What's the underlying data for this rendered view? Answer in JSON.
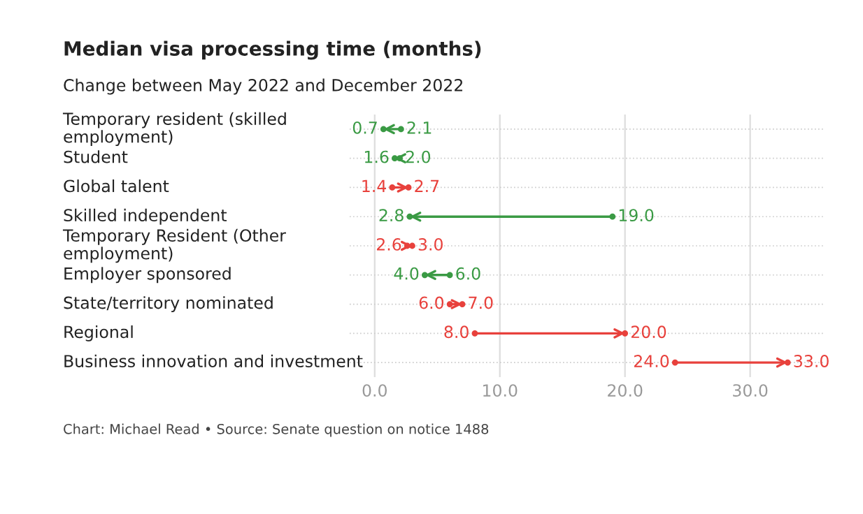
{
  "chart_data": {
    "type": "scatter",
    "orientation": "horizontal",
    "title": "Median visa processing time (months)",
    "subtitle": "Change between May 2022 and December 2022",
    "categories": [
      "Temporary resident (skilled\nemployment)",
      "Student",
      "Global talent",
      "Skilled independent",
      "Temporary Resident (Other\nemployment)",
      "Employer sponsored",
      "State/territory nominated",
      "Regional",
      "Business innovation and investment"
    ],
    "series": [
      {
        "values": [
          2.1,
          2.0,
          1.4,
          19.0,
          2.6,
          6.0,
          6.0,
          8.0,
          24.0
        ],
        "value_labels": [
          "2.1",
          "2.0",
          "1.4",
          "19.0",
          "2.6",
          "6.0",
          "6.0",
          "8.0",
          "24.0"
        ],
        "colors": [
          "#3a9a44",
          "#3a9a44",
          "#e8413c",
          "#3a9a44",
          "#e8413c",
          "#3a9a44",
          "#e8413c",
          "#e8413c",
          "#e8413c"
        ]
      },
      {
        "values": [
          0.7,
          1.6,
          2.7,
          2.8,
          3.0,
          4.0,
          7.0,
          20.0,
          33.0
        ],
        "value_labels": [
          "0.7",
          "1.6",
          "2.7",
          "2.8",
          "3.0",
          "4.0",
          "7.0",
          "20.0",
          "33.0"
        ],
        "colors": [
          "#3a9a44",
          "#3a9a44",
          "#e8413c",
          "#3a9a44",
          "#e8413c",
          "#3a9a44",
          "#e8413c",
          "#e8413c",
          "#e8413c"
        ]
      }
    ],
    "xlim": [
      -2,
      36
    ],
    "xticks": [
      {
        "value": 0,
        "label": "0.0"
      },
      {
        "value": 10,
        "label": "10.0"
      },
      {
        "value": 20,
        "label": "20.0"
      },
      {
        "value": 30,
        "label": "30.0"
      }
    ],
    "grid": true,
    "annotations": [
      "Chart: Michael Read • Source: Senate question on notice 1488"
    ]
  }
}
